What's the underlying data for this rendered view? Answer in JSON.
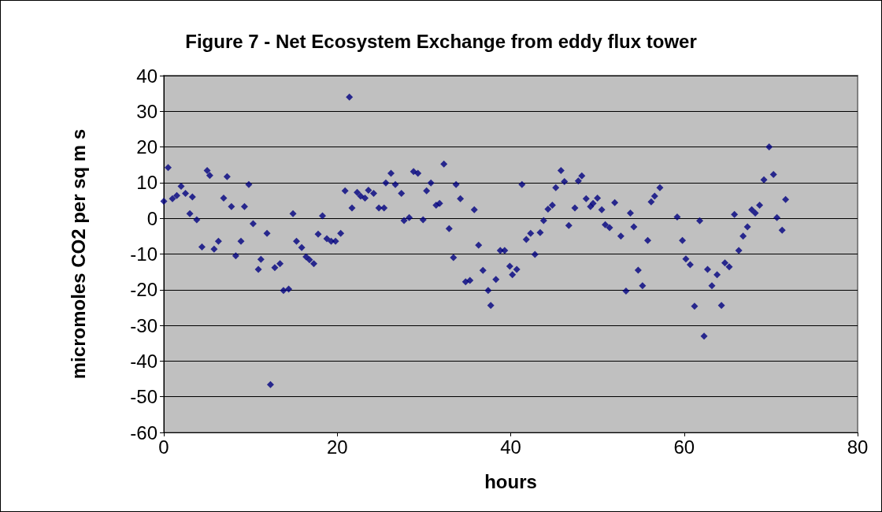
{
  "chart_data": {
    "type": "scatter",
    "title": "Figure 7 - Net Ecosystem Exchange from eddy flux tower",
    "xlabel": "hours",
    "ylabel": "micromoles CO2 per sq m s",
    "marker": "diamond",
    "grid": "y",
    "xlim": [
      0,
      80
    ],
    "xticks": [
      0,
      20,
      40,
      60,
      80
    ],
    "ylim": [
      -60,
      40
    ],
    "yticks": [
      -60,
      -50,
      -40,
      -30,
      -20,
      -10,
      0,
      10,
      20,
      30,
      40
    ],
    "series": [
      {
        "color": "#000080",
        "x": [
          0,
          0.5,
          1,
          1.5,
          2,
          2.5,
          3,
          3.3,
          3.8,
          4.4,
          5,
          5.3,
          5.8,
          6.3,
          6.9,
          7.3,
          7.8,
          8.3,
          8.9,
          9.3,
          9.8,
          10.3,
          10.9,
          11.2,
          11.9,
          12.3,
          12.8,
          13.4,
          13.8,
          14.4,
          14.9,
          15.3,
          15.9,
          16.4,
          16.8,
          17.3,
          17.8,
          18.3,
          18.8,
          19.3,
          19.8,
          20.4,
          20.9,
          21.4,
          21.7,
          22.3,
          22.7,
          23.2,
          23.6,
          24.2,
          24.8,
          25.4,
          25.6,
          26.2,
          26.7,
          27.4,
          27.7,
          28.3,
          28.8,
          29.3,
          29.9,
          30.3,
          30.8,
          31.4,
          31.8,
          32.3,
          32.9,
          33.4,
          33.7,
          34.2,
          34.8,
          35.3,
          35.8,
          36.3,
          36.8,
          37.4,
          37.7,
          38.3,
          38.8,
          39.3,
          39.9,
          40.2,
          40.7,
          41.3,
          41.8,
          42.3,
          42.8,
          43.4,
          43.8,
          44.3,
          44.8,
          45.2,
          45.8,
          46.2,
          46.7,
          47.4,
          47.8,
          48.2,
          48.7,
          49.2,
          49.5,
          50,
          50.5,
          50.9,
          51.4,
          52,
          52.7,
          53.3,
          53.8,
          54.2,
          54.7,
          55.2,
          55.8,
          56.2,
          56.6,
          57.2,
          59.2,
          59.8,
          60.2,
          60.7,
          61.2,
          61.8,
          62.3,
          62.7,
          63.2,
          63.8,
          64.3,
          64.7,
          65.2,
          65.8,
          66.3,
          66.8,
          67.3,
          67.8,
          68.2,
          68.7,
          69.2,
          69.8,
          70.3,
          70.7,
          71.3,
          71.7
        ],
        "values": [
          4.8,
          14.2,
          5.5,
          6.4,
          9,
          7,
          1.3,
          6,
          -0.4,
          -8,
          13.4,
          12,
          -8.6,
          -6.4,
          5.7,
          11.7,
          3.3,
          -10.5,
          -6.4,
          3.3,
          9.5,
          -1.5,
          -14.3,
          -11.5,
          -4.2,
          -46.6,
          -13.8,
          -12.7,
          -20.2,
          -19.8,
          1.3,
          -6.4,
          -8.2,
          -10.8,
          -11.6,
          -12.7,
          -4.4,
          0.7,
          -5.7,
          -6.4,
          -6.4,
          -4.2,
          7.7,
          34,
          2.9,
          7.3,
          6.2,
          5.7,
          7.9,
          7,
          2.9,
          2.9,
          9.9,
          12.6,
          9.5,
          7,
          -0.6,
          0.2,
          13.1,
          12.6,
          -0.4,
          7.7,
          9.9,
          3.7,
          4.2,
          15.2,
          -2.9,
          -11,
          9.5,
          5.5,
          -17.8,
          -17.4,
          2.4,
          -7.5,
          -14.6,
          -20.2,
          -24.4,
          -17.1,
          -9,
          -9,
          -13.4,
          -15.8,
          -14.3,
          9.5,
          -5.9,
          -4.2,
          -10.1,
          -4,
          -0.6,
          2.6,
          3.7,
          8.6,
          13.4,
          10.3,
          -2,
          2.9,
          10.5,
          11.9,
          5.5,
          3.3,
          4.2,
          5.7,
          2.4,
          -1.8,
          -2.6,
          4.4,
          -5,
          -20.4,
          1.5,
          -2.4,
          -14.5,
          -18.9,
          -6.2,
          4.6,
          6.2,
          8.6,
          0.4,
          -6.2,
          -11.4,
          -13,
          -24.6,
          -0.7,
          -33,
          -14.3,
          -18.9,
          -15.8,
          -24.4,
          -12.5,
          -13.6,
          1.1,
          -9,
          -5,
          -2.4,
          2.4,
          1.5,
          3.7,
          10.8,
          20,
          12.3,
          0.2,
          -3.3,
          5.3
        ]
      }
    ]
  }
}
